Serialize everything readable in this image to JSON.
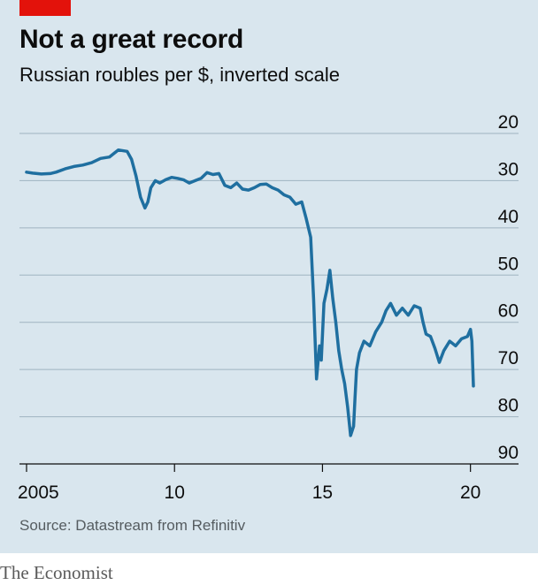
{
  "title": "Not a great record",
  "subtitle": "Russian roubles per $, inverted scale",
  "source": "Source: Datastream from Refinitiv",
  "brand": "The Economist",
  "colors": {
    "line": "#1f6fa0",
    "accent": "#e3120b",
    "background": "#d9e6ee",
    "grid": "#9fb3c0"
  },
  "chart_data": {
    "type": "line",
    "title": "Not a great record",
    "subtitle": "Russian roubles per $, inverted scale",
    "ylabel": "",
    "xlabel": "",
    "y_inverted": true,
    "ylim": [
      20,
      90
    ],
    "xlim": [
      2005.0,
      2020.1
    ],
    "y_ticks": [
      20,
      30,
      40,
      50,
      60,
      70,
      80,
      90
    ],
    "y_tick_labels": [
      "20",
      "30",
      "40",
      "50",
      "60",
      "70",
      "80",
      "90"
    ],
    "x_ticks": [
      2005,
      2010,
      2015,
      2020
    ],
    "x_tick_labels": [
      "2005",
      "10",
      "15",
      "20"
    ],
    "grid": true,
    "series": [
      {
        "x": [
          2005.0,
          2005.2,
          2005.5,
          2005.8,
          2006.0,
          2006.3,
          2006.6,
          2006.9,
          2007.2,
          2007.5,
          2007.8,
          2008.1,
          2008.4,
          2008.55,
          2008.7,
          2008.85,
          2009.0,
          2009.1,
          2009.2,
          2009.35,
          2009.5,
          2009.7,
          2009.9,
          2010.1,
          2010.3,
          2010.5,
          2010.7,
          2010.9,
          2011.1,
          2011.3,
          2011.5,
          2011.7,
          2011.9,
          2012.1,
          2012.3,
          2012.5,
          2012.7,
          2012.9,
          2013.1,
          2013.3,
          2013.5,
          2013.7,
          2013.9,
          2014.1,
          2014.3,
          2014.45,
          2014.6,
          2014.7,
          2014.8,
          2014.9,
          2014.96,
          2015.05,
          2015.15,
          2015.25,
          2015.35,
          2015.45,
          2015.55,
          2015.65,
          2015.75,
          2015.85,
          2015.95,
          2016.05,
          2016.1,
          2016.15,
          2016.25,
          2016.4,
          2016.6,
          2016.8,
          2017.0,
          2017.15,
          2017.3,
          2017.5,
          2017.7,
          2017.9,
          2018.1,
          2018.3,
          2018.4,
          2018.5,
          2018.65,
          2018.8,
          2018.95,
          2019.1,
          2019.3,
          2019.5,
          2019.7,
          2019.9,
          2020.0,
          2020.05,
          2020.1
        ],
        "values": [
          28.2,
          28.4,
          28.6,
          28.5,
          28.2,
          27.5,
          27.0,
          26.7,
          26.2,
          25.3,
          25.0,
          23.5,
          23.8,
          25.5,
          29.0,
          33.5,
          35.8,
          34.5,
          31.5,
          30.0,
          30.5,
          29.8,
          29.3,
          29.5,
          29.8,
          30.5,
          30.0,
          29.5,
          28.3,
          28.7,
          28.5,
          31.0,
          31.5,
          30.5,
          31.8,
          32.0,
          31.5,
          30.8,
          30.7,
          31.5,
          32.0,
          33.0,
          33.5,
          35.0,
          34.5,
          38.0,
          42.0,
          55.0,
          72.0,
          65.0,
          68.0,
          56.0,
          53.0,
          49.0,
          55.0,
          60.0,
          66.0,
          70.0,
          73.0,
          78.0,
          84.0,
          82.0,
          76.0,
          70.0,
          66.5,
          64.0,
          65.0,
          62.0,
          60.0,
          57.5,
          56.0,
          58.5,
          57.0,
          58.5,
          56.5,
          57.0,
          60.0,
          62.5,
          63.0,
          65.5,
          68.5,
          66.0,
          64.0,
          65.0,
          63.5,
          63.0,
          61.5,
          64.0,
          73.5
        ]
      }
    ]
  }
}
